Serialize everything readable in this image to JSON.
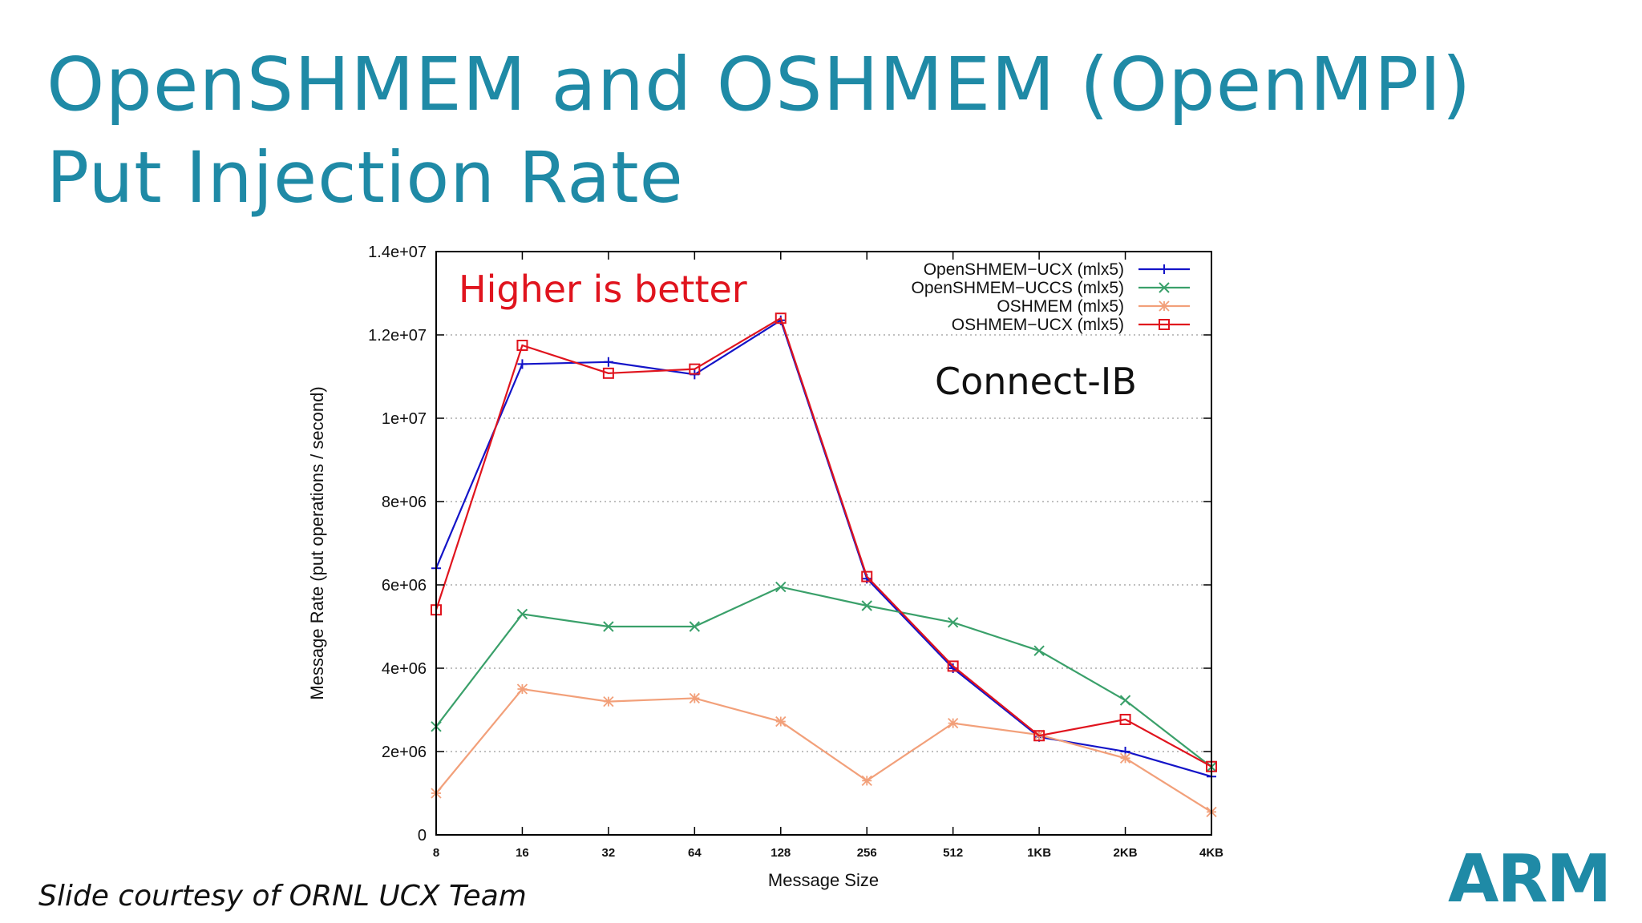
{
  "slide": {
    "title_line1": "OpenSHMEM and OSHMEM (OpenMPI)",
    "title_line2": "Put Injection Rate",
    "courtesy": "Slide courtesy of ORNL UCX Team",
    "logo": "ARM",
    "accent_color": "#1f8aa6"
  },
  "chart_data": {
    "type": "line",
    "title": "",
    "xlabel": "Message Size",
    "ylabel": "Message Rate (put operations / second)",
    "x": [
      "8",
      "16",
      "32",
      "64",
      "128",
      "256",
      "512",
      "1KB",
      "2KB",
      "4KB"
    ],
    "ylim": [
      0,
      14000000
    ],
    "yticks": [
      "0",
      "2e+06",
      "4e+06",
      "6e+06",
      "8e+06",
      "1e+07",
      "1.2e+07",
      "1.4e+07"
    ],
    "grid": "horizontal dotted",
    "legend_position": "top-right",
    "annotations": [
      "Higher is better",
      "Connect-IB"
    ],
    "annotation_colors": [
      "#e0141e",
      "#111111"
    ],
    "series": [
      {
        "name": "OpenSHMEM−UCX (mlx5)",
        "color": "#1414c8",
        "marker": "plus",
        "values": [
          6400000,
          11300000,
          11350000,
          11050000,
          12350000,
          6150000,
          4000000,
          2350000,
          2000000,
          1400000
        ]
      },
      {
        "name": "OpenSHMEM−UCCS (mlx5)",
        "color": "#3aa06a",
        "marker": "x",
        "values": [
          2600000,
          5300000,
          5000000,
          5000000,
          5950000,
          5500000,
          5100000,
          4420000,
          3230000,
          1630000
        ]
      },
      {
        "name": "OSHMEM (mlx5)",
        "color": "#f2a07a",
        "marker": "star",
        "values": [
          1000000,
          3500000,
          3200000,
          3280000,
          2720000,
          1300000,
          2680000,
          2400000,
          1840000,
          550000
        ]
      },
      {
        "name": "OSHMEM−UCX (mlx5)",
        "color": "#e0141e",
        "marker": "square",
        "values": [
          5400000,
          11750000,
          11080000,
          11180000,
          12400000,
          6200000,
          4050000,
          2380000,
          2770000,
          1640000
        ]
      }
    ]
  }
}
